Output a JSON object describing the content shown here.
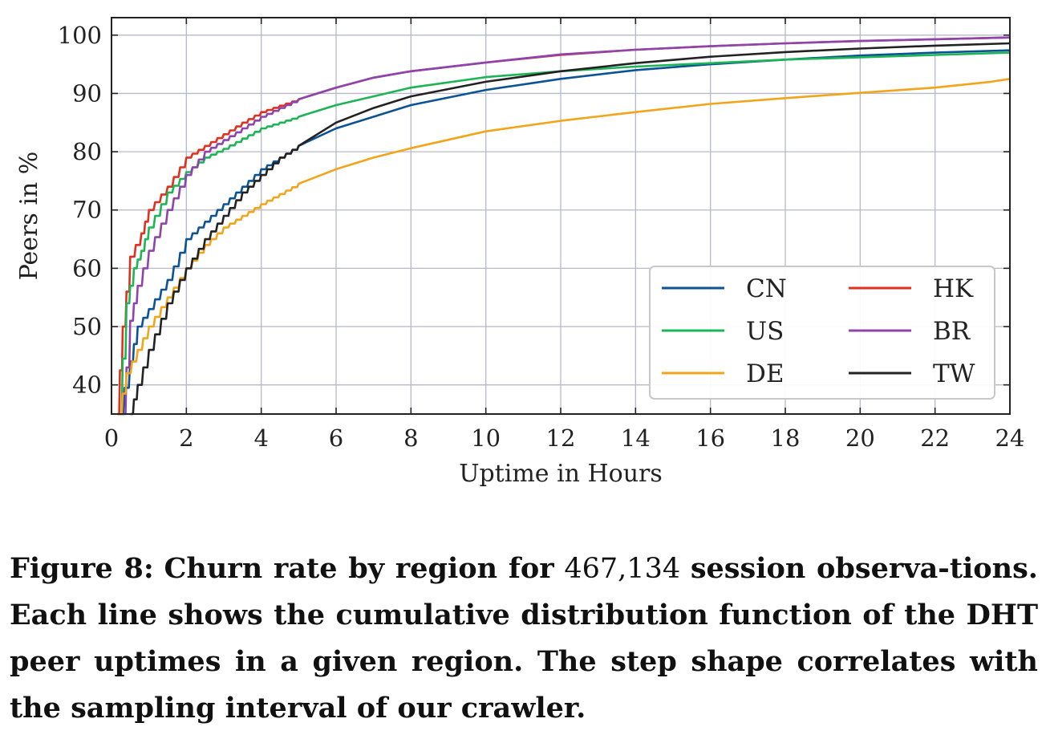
{
  "chart_data": {
    "type": "line",
    "title": "",
    "xlabel": "Uptime in Hours",
    "ylabel": "Peers in %",
    "xlim": [
      0,
      24
    ],
    "ylim": [
      35,
      103
    ],
    "x_ticks": [
      "0",
      "2",
      "4",
      "6",
      "8",
      "10",
      "12",
      "14",
      "16",
      "18",
      "20",
      "22",
      "24"
    ],
    "y_ticks": [
      "40",
      "50",
      "60",
      "70",
      "80",
      "90",
      "100"
    ],
    "grid": true,
    "legend_position": "bottom-right",
    "series": [
      {
        "name": "CN",
        "color": "#0b5394",
        "x": [
          0.2,
          0.5,
          0.7,
          1.0,
          1.5,
          2.0,
          2.5,
          3.0,
          3.5,
          4.0,
          5.0,
          6.0,
          7.0,
          8.0,
          10.0,
          12.0,
          14.0,
          16.0,
          18.0,
          20.0,
          22.0,
          24.0
        ],
        "y": [
          35,
          44,
          50,
          53,
          58,
          65,
          68,
          71,
          74,
          77,
          81,
          84,
          86,
          88,
          90.6,
          92.5,
          94,
          95,
          95.8,
          96.5,
          97,
          97.4
        ]
      },
      {
        "name": "HK",
        "color": "#e0301e",
        "x": [
          0.15,
          0.3,
          0.5,
          0.8,
          1.0,
          1.5,
          2.0,
          2.5,
          3.0,
          3.5,
          4.0,
          5.0,
          6.0,
          7.0,
          8.0,
          10.0,
          12.0,
          14.0,
          16.0,
          18.0,
          20.0,
          22.0,
          24.0
        ],
        "y": [
          35,
          50,
          62,
          66,
          70,
          74,
          79,
          81,
          83,
          85,
          86.8,
          89,
          91,
          92.7,
          93.8,
          95.3,
          96.6,
          97.5,
          98.1,
          98.6,
          99,
          99.3,
          99.6
        ]
      },
      {
        "name": "US",
        "color": "#1db455",
        "x": [
          0.2,
          0.4,
          0.6,
          0.8,
          1.0,
          1.5,
          2.0,
          2.5,
          3.0,
          4.0,
          5.0,
          6.0,
          7.0,
          8.0,
          10.0,
          12.0,
          14.0,
          16.0,
          18.0,
          20.0,
          22.0,
          24.0
        ],
        "y": [
          35,
          54,
          60,
          63,
          67,
          73,
          76.5,
          79,
          80.5,
          84,
          86,
          88,
          89.5,
          91,
          92.8,
          93.8,
          94.6,
          95.2,
          95.8,
          96.2,
          96.6,
          97
        ]
      },
      {
        "name": "BR",
        "color": "#8e44ad",
        "x": [
          0.3,
          0.5,
          0.7,
          1.0,
          1.5,
          2.0,
          2.5,
          3.0,
          3.5,
          4.0,
          5.0,
          6.0,
          7.0,
          8.0,
          10.0,
          12.0,
          14.0,
          16.0,
          18.0,
          20.0,
          22.0,
          24.0
        ],
        "y": [
          35,
          51,
          57,
          63,
          70,
          76,
          80,
          82,
          84,
          86,
          89,
          91,
          92.7,
          93.8,
          95.3,
          96.7,
          97.5,
          98.1,
          98.6,
          99,
          99.3,
          99.6
        ]
      },
      {
        "name": "DE",
        "color": "#f2a51a",
        "x": [
          0.2,
          0.4,
          0.7,
          1.0,
          1.5,
          2.0,
          2.5,
          3.0,
          4.0,
          5.0,
          6.0,
          7.0,
          8.0,
          10.0,
          12.0,
          14.0,
          16.0,
          18.0,
          20.0,
          22.0,
          23.5,
          24.0
        ],
        "y": [
          35,
          42,
          46,
          50,
          55,
          60,
          64,
          67,
          71,
          74.5,
          77,
          79,
          80.6,
          83.5,
          85.3,
          86.8,
          88.2,
          89.2,
          90.1,
          91,
          92,
          92.5
        ]
      },
      {
        "name": "TW",
        "color": "#222222",
        "x": [
          0.5,
          0.7,
          1.0,
          1.5,
          2.0,
          2.5,
          3.0,
          3.5,
          4.0,
          4.5,
          5.0,
          6.0,
          7.0,
          8.0,
          10.0,
          12.0,
          14.0,
          16.0,
          18.0,
          20.0,
          22.0,
          24.0
        ],
        "y": [
          35,
          40,
          46,
          54,
          60,
          65,
          69,
          73,
          76,
          79,
          81,
          85,
          87.5,
          89.5,
          92,
          93.8,
          95.2,
          96.3,
          97.1,
          97.7,
          98.2,
          98.6
        ]
      }
    ]
  },
  "caption": {
    "label": "Figure 8:",
    "lead": "Churn rate by region for",
    "number": "467,134",
    "rest": "session observa-tions. Each line shows the cumulative distribution function of the DHT peer uptimes in a given region. The step shape correlates with the sampling interval of our crawler."
  }
}
